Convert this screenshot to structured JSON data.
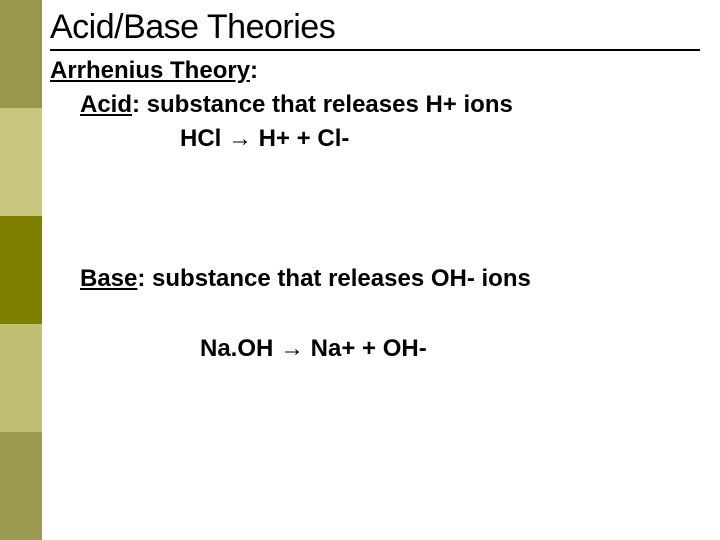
{
  "sidebar": {
    "colors": [
      "#97974d",
      "#c6c67e",
      "#808000",
      "#c0c074",
      "#9a9a50"
    ]
  },
  "slide": {
    "title": "Acid/Base Theories",
    "theory_label": "Arrhenius Theory",
    "colon": ":",
    "acid_label": "Acid",
    "acid_def": ": substance that releases H+ ions",
    "acid_eq": "HCl → H+ + Cl-",
    "base_label": "Base",
    "base_def": ": substance that releases OH- ions",
    "base_eq": "Na.OH → Na+ + OH-"
  }
}
